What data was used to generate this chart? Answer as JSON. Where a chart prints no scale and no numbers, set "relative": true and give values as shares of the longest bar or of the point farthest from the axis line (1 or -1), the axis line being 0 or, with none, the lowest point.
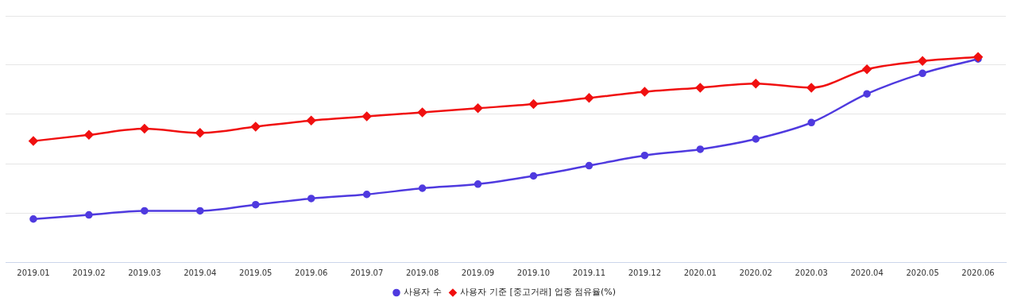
{
  "chart_data": {
    "type": "line",
    "relative": true,
    "grid": "y",
    "legend": "bottom",
    "categories": [
      "2019.01",
      "2019.02",
      "2019.03",
      "2019.04",
      "2019.05",
      "2019.06",
      "2019.07",
      "2019.08",
      "2019.09",
      "2019.10",
      "2019.11",
      "2019.12",
      "2020.01",
      "2020.02",
      "2020.03",
      "2020.04",
      "2020.05",
      "2020.06"
    ],
    "series": [
      {
        "name": "사용자 수",
        "color": "#4f3adf",
        "marker": "circle",
        "values": [
          0.21,
          0.23,
          0.25,
          0.25,
          0.28,
          0.31,
          0.33,
          0.36,
          0.38,
          0.42,
          0.47,
          0.52,
          0.55,
          0.6,
          0.68,
          0.82,
          0.92,
          0.99
        ]
      },
      {
        "name": "사용자 기준 [중고거래] 업종 점유율(%)",
        "color": "#f01010",
        "marker": "diamond",
        "values": [
          0.59,
          0.62,
          0.65,
          0.63,
          0.66,
          0.69,
          0.71,
          0.73,
          0.75,
          0.77,
          0.8,
          0.83,
          0.85,
          0.87,
          0.85,
          0.94,
          0.98,
          1
        ]
      }
    ]
  }
}
